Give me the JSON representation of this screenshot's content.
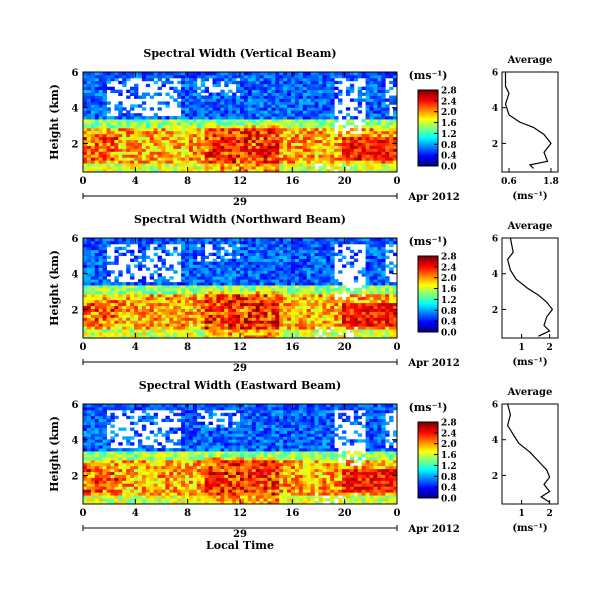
{
  "figure": {
    "xlabel_common": "Local Time",
    "date_label": "Apr 2012",
    "day_label": "29",
    "colorbar_unit": "(ms⁻¹)",
    "profile_xlabel": "(ms⁻¹)",
    "profile_title": "Average"
  },
  "chart_data": [
    {
      "type": "heatmap",
      "title": "Spectral Width (Vertical Beam)",
      "xlabel": "",
      "ylabel": "Height (km)",
      "x_ticks": [
        "0",
        "4",
        "8",
        "12",
        "16",
        "20",
        "0"
      ],
      "y_ticks": [
        "6",
        "4",
        "2"
      ],
      "x_range_hours": [
        0,
        24
      ],
      "y_range_km": [
        0.4,
        6.0
      ],
      "colorbar": {
        "ticks": [
          "2.8",
          "2.4",
          "2.0",
          "1.6",
          "1.2",
          "0.8",
          "0.4",
          "0.0"
        ],
        "range": [
          0.0,
          2.8
        ]
      },
      "colors": [
        "#000080",
        "#0000ff",
        "#0080ff",
        "#00ffff",
        "#80ff80",
        "#ffff00",
        "#ff8000",
        "#ff0000",
        "#800000"
      ]
    },
    {
      "type": "line",
      "title": "Average",
      "xlabel": "(ms⁻¹)",
      "x_ticks": [
        "0.6",
        "1.8"
      ],
      "y_ticks": [
        "6",
        "4",
        "2"
      ],
      "xlim": [
        0.4,
        2.0
      ],
      "ylim": [
        0.4,
        6.0
      ],
      "x": [
        0.5,
        0.5,
        0.6,
        0.5,
        0.6,
        0.9,
        1.3,
        1.6,
        1.8,
        1.6,
        1.7,
        1.2,
        1.3
      ],
      "y": [
        6.0,
        5.2,
        4.8,
        4.2,
        3.6,
        3.2,
        2.9,
        2.5,
        2.0,
        1.5,
        1.0,
        0.8,
        0.6
      ]
    },
    {
      "type": "heatmap",
      "title": "Spectral Width (Northward Beam)",
      "xlabel": "",
      "ylabel": "Height (km)",
      "x_ticks": [
        "0",
        "4",
        "8",
        "12",
        "16",
        "20",
        "0"
      ],
      "y_ticks": [
        "6",
        "4",
        "2"
      ],
      "x_range_hours": [
        0,
        24
      ],
      "y_range_km": [
        0.4,
        6.0
      ],
      "colorbar": {
        "ticks": [
          "2.8",
          "2.4",
          "2.0",
          "1.6",
          "1.2",
          "0.8",
          "0.4",
          "0.0"
        ],
        "range": [
          0.0,
          2.8
        ]
      }
    },
    {
      "type": "line",
      "title": "Average",
      "xlabel": "(ms⁻¹)",
      "x_ticks": [
        "1",
        "2"
      ],
      "y_ticks": [
        "6",
        "4",
        "2"
      ],
      "xlim": [
        0.3,
        2.3
      ],
      "ylim": [
        0.4,
        6.0
      ],
      "x": [
        0.6,
        0.7,
        0.5,
        0.6,
        0.8,
        1.2,
        1.6,
        1.9,
        2.1,
        1.9,
        1.8,
        2.0,
        1.6
      ],
      "y": [
        6.0,
        5.2,
        4.8,
        4.2,
        3.7,
        3.2,
        2.8,
        2.4,
        2.0,
        1.6,
        1.1,
        0.8,
        0.5
      ]
    },
    {
      "type": "heatmap",
      "title": "Spectral Width (Eastward Beam)",
      "xlabel": "Local Time",
      "ylabel": "Height (km)",
      "x_ticks": [
        "0",
        "4",
        "8",
        "12",
        "16",
        "20",
        "0"
      ],
      "y_ticks": [
        "6",
        "4",
        "2"
      ],
      "x_range_hours": [
        0,
        24
      ],
      "y_range_km": [
        0.4,
        6.0
      ],
      "colorbar": {
        "ticks": [
          "2.8",
          "2.4",
          "2.0",
          "1.6",
          "1.2",
          "0.8",
          "0.4",
          "0.0"
        ],
        "range": [
          0.0,
          2.8
        ]
      }
    },
    {
      "type": "line",
      "title": "Average",
      "xlabel": "(ms⁻¹)",
      "x_ticks": [
        "1",
        "2"
      ],
      "y_ticks": [
        "6",
        "4",
        "2"
      ],
      "xlim": [
        0.3,
        2.3
      ],
      "ylim": [
        0.4,
        6.0
      ],
      "x": [
        0.5,
        0.6,
        0.5,
        0.7,
        0.9,
        1.3,
        1.6,
        1.9,
        2.0,
        1.8,
        2.0,
        1.7,
        2.0
      ],
      "y": [
        6.0,
        5.4,
        4.8,
        4.3,
        3.8,
        3.3,
        2.8,
        2.3,
        1.9,
        1.5,
        1.1,
        0.8,
        0.5
      ]
    }
  ]
}
